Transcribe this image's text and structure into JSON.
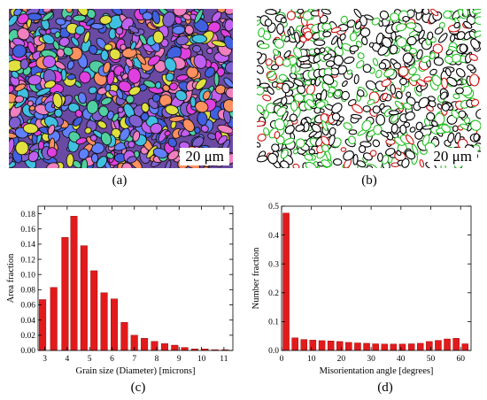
{
  "panels": {
    "a": {
      "caption": "(a)",
      "scalebar": "20 μm",
      "colors": [
        "#e040e0",
        "#7f5fd0",
        "#40c0e0",
        "#e0e040",
        "#f080c0",
        "#4060e0",
        "#50d0a0",
        "#c060f0",
        "#ff9060",
        "#6080ff"
      ]
    },
    "b": {
      "caption": "(b)",
      "scalebar": "20 μm",
      "colors": [
        "#22c022",
        "#d01010",
        "#000000"
      ]
    },
    "c": {
      "caption": "(c)"
    },
    "d": {
      "caption": "(d)"
    }
  },
  "chart_data": [
    {
      "type": "bar",
      "color": "#e31a1c",
      "xlabel": "Grain size (Diameter) [microns]",
      "ylabel": "Area fraction",
      "xlim": [
        2.7,
        11.4
      ],
      "ylim": [
        0,
        0.19
      ],
      "xticks": [
        3,
        4,
        5,
        6,
        7,
        8,
        9,
        10,
        11
      ],
      "yticks": [
        0.0,
        0.02,
        0.04,
        0.06,
        0.08,
        0.1,
        0.12,
        0.14,
        0.16,
        0.18
      ],
      "yticklabels": [
        "0.00",
        "0.02",
        "0.04",
        "0.06",
        "0.08",
        "0.10",
        "0.12",
        "0.14",
        "0.16",
        "0.18"
      ],
      "x": [
        2.9,
        3.4,
        3.9,
        4.3,
        4.75,
        5.2,
        5.65,
        6.1,
        6.55,
        7.0,
        7.45,
        7.9,
        8.35,
        8.8,
        9.25,
        9.7,
        10.15,
        10.6,
        11.05
      ],
      "values": [
        0.067,
        0.083,
        0.149,
        0.177,
        0.138,
        0.105,
        0.076,
        0.068,
        0.037,
        0.02,
        0.016,
        0.012,
        0.009,
        0.007,
        0.004,
        0.002,
        0.002,
        0.001,
        0.001
      ],
      "bar_width": 0.3
    },
    {
      "type": "bar",
      "color": "#e31a1c",
      "xlabel": "Misorientation angle [degrees]",
      "ylabel": "Number fraction",
      "xlim": [
        0,
        63.5
      ],
      "ylim": [
        0,
        0.5
      ],
      "xticks": [
        0,
        10,
        20,
        30,
        40,
        50,
        60
      ],
      "yticks": [
        0.0,
        0.1,
        0.2,
        0.3,
        0.4,
        0.5
      ],
      "yticklabels": [
        "0.0",
        "0.1",
        "0.2",
        "0.3",
        "0.4",
        "0.5"
      ],
      "x": [
        1.5,
        4.5,
        7.5,
        10.5,
        13.5,
        16.5,
        19.5,
        22.5,
        25.5,
        28.5,
        31.5,
        34.5,
        37.5,
        40.5,
        43.5,
        46.5,
        49.5,
        52.5,
        55.5,
        58.5,
        61.5
      ],
      "values": [
        0.476,
        0.044,
        0.038,
        0.036,
        0.034,
        0.033,
        0.031,
        0.028,
        0.026,
        0.025,
        0.023,
        0.022,
        0.022,
        0.022,
        0.023,
        0.025,
        0.031,
        0.035,
        0.04,
        0.042,
        0.023
      ],
      "bar_width": 2.1
    }
  ]
}
